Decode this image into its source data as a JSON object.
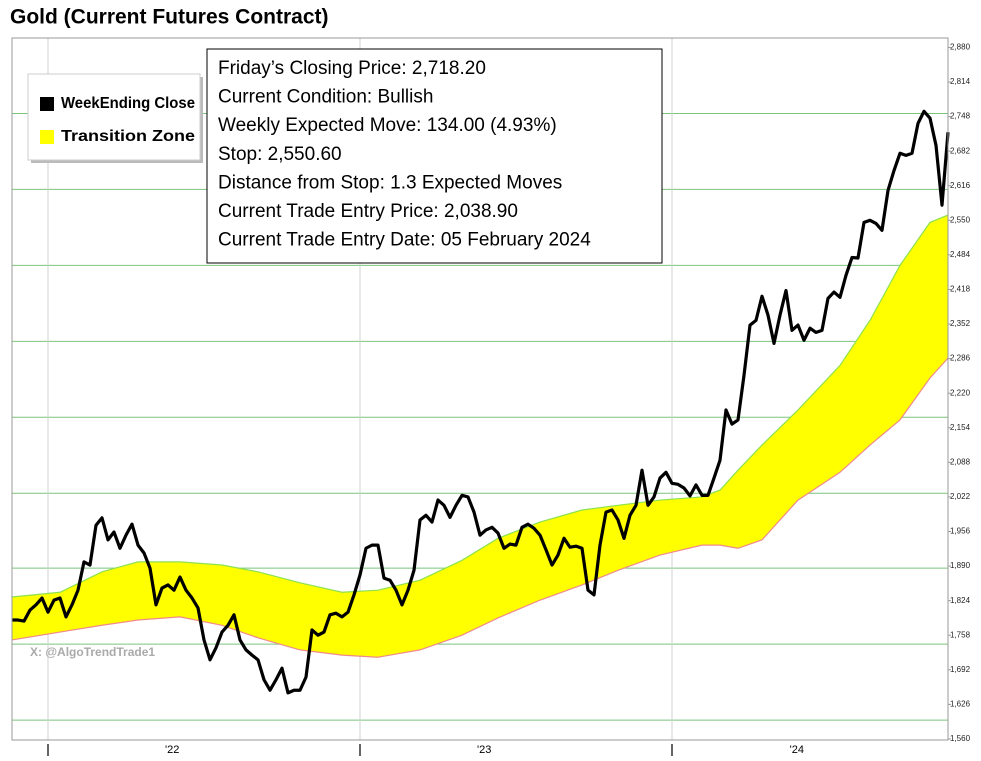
{
  "chart_data": {
    "type": "line",
    "title": "Gold (Current Futures Contract)",
    "watermark": "X: @AlgoTrendTrade1",
    "info": [
      "Friday’s Closing Price: 2,718.20",
      "Current Condition: Bullish",
      "Weekly Expected Move: 134.00 (4.93%)",
      "Stop: 2,550.60",
      "Distance from Stop: 1.3 Expected Moves",
      "Current Trade Entry Price: 2,038.90",
      "Current Trade Entry Date: 05 February 2024"
    ],
    "xlim": [
      0,
      156
    ],
    "xticks": [
      6,
      58,
      110
    ],
    "xlabels": [
      {
        "value": 26.7,
        "label": "'22"
      },
      {
        "value": 78.7,
        "label": "'23"
      },
      {
        "value": 130.8,
        "label": "'24"
      }
    ],
    "ylim": [
      1558,
      2898
    ],
    "yticks": [
      {
        "value": 1560,
        "label": "1,560"
      },
      {
        "value": 1626,
        "label": "1,626"
      },
      {
        "value": 1692,
        "label": "1,692"
      },
      {
        "value": 1758,
        "label": "1,758"
      },
      {
        "value": 1824,
        "label": "1,824"
      },
      {
        "value": 1890,
        "label": "1,890"
      },
      {
        "value": 1956,
        "label": "1,956"
      },
      {
        "value": 2022,
        "label": "2,022"
      },
      {
        "value": 2088,
        "label": "2,088"
      },
      {
        "value": 2154,
        "label": "2,154"
      },
      {
        "value": 2220,
        "label": "2,220"
      },
      {
        "value": 2286,
        "label": "2,286"
      },
      {
        "value": 2352,
        "label": "2,352"
      },
      {
        "value": 2418,
        "label": "2,418"
      },
      {
        "value": 2484,
        "label": "2,484"
      },
      {
        "value": 2550,
        "label": "2,550"
      },
      {
        "value": 2616,
        "label": "2,616"
      },
      {
        "value": 2682,
        "label": "2,682"
      },
      {
        "value": 2748,
        "label": "2,748"
      },
      {
        "value": 2814,
        "label": "2,814"
      },
      {
        "value": 2880,
        "label": "2,880"
      }
    ],
    "ygrid": [
      1596,
      1741,
      1886,
      2029,
      2174,
      2319,
      2464,
      2609,
      2754
    ],
    "grid_color": "#7cc47c",
    "series": [
      {
        "name": "WeekEnding Close",
        "color": "#000000",
        "x": [
          0,
          1,
          2,
          3,
          4,
          5,
          6,
          7,
          8,
          9,
          10,
          11,
          12,
          13,
          14,
          15,
          16,
          17,
          18,
          19,
          20,
          21,
          22,
          23,
          24,
          25,
          26,
          27,
          28,
          29,
          30,
          31,
          32,
          33,
          34,
          35,
          36,
          37,
          38,
          39,
          40,
          41,
          42,
          43,
          44,
          45,
          46,
          47,
          48,
          49,
          50,
          51,
          52,
          53,
          54,
          55,
          56,
          57,
          58,
          59,
          60,
          61,
          62,
          63,
          64,
          65,
          66,
          67,
          68,
          69,
          70,
          71,
          72,
          73,
          74,
          75,
          76,
          77,
          78,
          79,
          80,
          81,
          82,
          83,
          84,
          85,
          86,
          87,
          88,
          89,
          90,
          91,
          92,
          93,
          94,
          95,
          96,
          97,
          98,
          99,
          100,
          101,
          102,
          103,
          104,
          105,
          106,
          107,
          108,
          109,
          110,
          111,
          112,
          113,
          114,
          115,
          116,
          117,
          118,
          119,
          120,
          121,
          122,
          123,
          124,
          125,
          126,
          127,
          128,
          129,
          130,
          131,
          132,
          133,
          134,
          135,
          136,
          137,
          138,
          139,
          140,
          141,
          142,
          143,
          144,
          145,
          146,
          147,
          148,
          149,
          150,
          151,
          152,
          153,
          154,
          155,
          156
        ],
        "values": [
          1787,
          1787,
          1785,
          1806,
          1816,
          1829,
          1802,
          1825,
          1829,
          1793,
          1816,
          1844,
          1898,
          1892,
          1968,
          1982,
          1940,
          1955,
          1924,
          1949,
          1970,
          1930,
          1915,
          1886,
          1816,
          1848,
          1854,
          1844,
          1869,
          1844,
          1829,
          1810,
          1749,
          1711,
          1734,
          1764,
          1777,
          1797,
          1749,
          1730,
          1720,
          1711,
          1673,
          1653,
          1673,
          1695,
          1648,
          1653,
          1653,
          1678,
          1768,
          1758,
          1764,
          1797,
          1800,
          1793,
          1802,
          1835,
          1873,
          1924,
          1930,
          1930,
          1867,
          1863,
          1844,
          1816,
          1844,
          1882,
          1978,
          1987,
          1974,
          2016,
          2006,
          1983,
          2006,
          2025,
          2022,
          1993,
          1949,
          1959,
          1964,
          1953,
          1924,
          1932,
          1930,
          1964,
          1970,
          1962,
          1949,
          1921,
          1892,
          1911,
          1943,
          1926,
          1928,
          1924,
          1844,
          1835,
          1930,
          1993,
          1997,
          1978,
          1943,
          1987,
          2006,
          2073,
          2006,
          2022,
          2058,
          2069,
          2048,
          2046,
          2039,
          2024,
          2045,
          2025,
          2025,
          2058,
          2092,
          2188,
          2161,
          2169,
          2254,
          2350,
          2359,
          2405,
          2369,
          2315,
          2369,
          2416,
          2340,
          2350,
          2321,
          2344,
          2336,
          2340,
          2401,
          2413,
          2403,
          2445,
          2479,
          2478,
          2546,
          2550,
          2544,
          2531,
          2607,
          2645,
          2678,
          2674,
          2678,
          2735,
          2758,
          2745,
          2693,
          2579,
          2718.2
        ]
      },
      {
        "name": "Transition Zone",
        "color": "#ffff00",
        "upper_color": "#8ee050",
        "lower_color": "#f08a8a",
        "x": [
          0,
          8,
          15,
          21,
          28,
          35,
          41,
          48,
          55,
          61,
          68,
          75,
          81,
          88,
          95,
          101,
          108,
          115,
          118,
          121,
          125,
          131,
          138,
          143,
          148,
          153,
          156
        ],
        "upper": [
          1831,
          1840,
          1879,
          1898,
          1898,
          1892,
          1879,
          1858,
          1840,
          1844,
          1863,
          1901,
          1943,
          1974,
          1997,
          2006,
          2016,
          2022,
          2035,
          2073,
          2121,
          2188,
          2273,
          2359,
          2464,
          2546,
          2560
        ],
        "lower": [
          1749,
          1764,
          1777,
          1787,
          1793,
          1777,
          1753,
          1730,
          1720,
          1716,
          1730,
          1758,
          1791,
          1825,
          1854,
          1882,
          1911,
          1930,
          1930,
          1924,
          1940,
          2016,
          2069,
          2121,
          2169,
          2249,
          2287
        ]
      }
    ]
  }
}
